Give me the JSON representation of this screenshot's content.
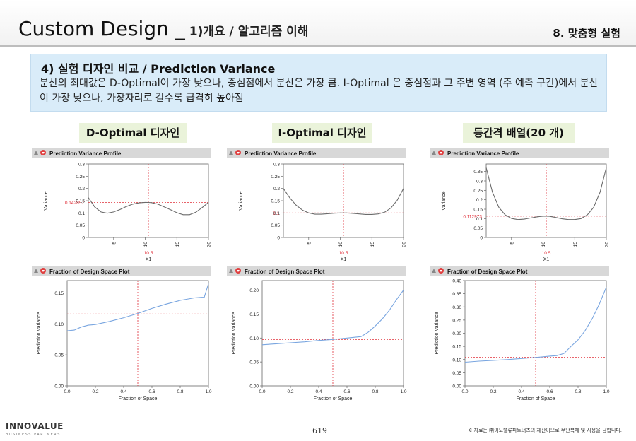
{
  "header": {
    "title": "Custom Design _",
    "subtitle": "1)개요 / 알고리즘 이해",
    "section": "8. 맞춤형 실험"
  },
  "box": {
    "title": "4) 실험 디자인 비교 / Prediction Variance",
    "body": "분산의 최대값은 D-Optimal이 가장 낮으나, 중심점에서 분산은 가장 큼. I-Optimal 은 중심점과 그 주변 영역 (주 예측 구간)에서 분산이 가장 낮으나, 가장자리로 갈수록 급격히 높아짐"
  },
  "profile_common": {
    "title": "Prediction Variance Profile",
    "ylabel": "Variance",
    "xlabel": "X1",
    "x_ticks": [
      "5",
      "10",
      "15",
      "20"
    ],
    "cursor_x": "10.5"
  },
  "fds_common": {
    "title": "Fraction of Design Space Plot",
    "ylabel": "Prediction Variance",
    "xlabel": "Fraction of Space",
    "x_ticks": [
      "0.0",
      "0.2",
      "0.4",
      "0.6",
      "0.8",
      "1.0"
    ]
  },
  "colors": {
    "profile_curve": "#6b6b6b",
    "fds_curve": "#7aa6e0",
    "crosshair": "#e0303a",
    "panel_header": "#d8d8d8",
    "label_bg": "#eaf3da"
  },
  "footer": {
    "logo": "INNOVALUE",
    "logo_sub": "BUSINESS PARTNERS",
    "page": "619",
    "note": "※ 자료는 ㈜이노밸류파트너즈의 재산이므로 무단복제 및 사용을 금합니다."
  },
  "chart_data": [
    {
      "type": "line",
      "panel_label": "D-Optimal 디자인",
      "profile": {
        "y_ticks": [
          "0",
          "0.05",
          "0.1",
          "0.15",
          "0.2",
          "0.25",
          "0.3"
        ],
        "ylim": [
          0,
          0.3
        ],
        "xlim": [
          1,
          20
        ],
        "cursor_y_label": "0.142857",
        "cursor_y": 0.142857,
        "x": [
          1,
          2,
          3,
          4,
          5,
          6,
          7,
          8,
          9,
          10,
          10.5,
          11,
          12,
          13,
          14,
          15,
          16,
          17,
          18,
          19,
          20
        ],
        "y": [
          0.163,
          0.125,
          0.104,
          0.099,
          0.104,
          0.114,
          0.126,
          0.136,
          0.141,
          0.143,
          0.1429,
          0.142,
          0.136,
          0.125,
          0.113,
          0.101,
          0.093,
          0.093,
          0.103,
          0.122,
          0.143
        ]
      },
      "fds": {
        "y_ticks": [
          "0.00",
          "0.05",
          "0.10",
          "0.15"
        ],
        "ylim": [
          0,
          0.17
        ],
        "xlim": [
          0,
          1
        ],
        "cursor_x": 0.5,
        "cursor_y": 0.116,
        "x": [
          0,
          0.05,
          0.1,
          0.15,
          0.2,
          0.3,
          0.4,
          0.5,
          0.6,
          0.7,
          0.8,
          0.9,
          0.95,
          0.97,
          1.0
        ],
        "y": [
          0.089,
          0.09,
          0.095,
          0.098,
          0.099,
          0.104,
          0.11,
          0.117,
          0.125,
          0.132,
          0.138,
          0.142,
          0.143,
          0.143,
          0.165
        ]
      }
    },
    {
      "type": "line",
      "panel_label": "I-Optimal 디자인",
      "profile": {
        "y_ticks": [
          "0",
          "0.05",
          "0.1",
          "0.15",
          "0.2",
          "0.25",
          "0.3"
        ],
        "ylim": [
          0,
          0.3
        ],
        "xlim": [
          1,
          20
        ],
        "cursor_y_label": "0.1",
        "cursor_y": 0.1,
        "x": [
          1,
          2,
          3,
          4,
          5,
          6,
          7,
          8,
          9,
          10,
          10.5,
          11,
          12,
          13,
          14,
          15,
          16,
          17,
          18,
          19,
          20
        ],
        "y": [
          0.2,
          0.162,
          0.132,
          0.112,
          0.1,
          0.095,
          0.095,
          0.097,
          0.099,
          0.1,
          0.1,
          0.1,
          0.098,
          0.096,
          0.094,
          0.094,
          0.096,
          0.103,
          0.12,
          0.152,
          0.2
        ]
      },
      "fds": {
        "y_ticks": [
          "0.00",
          "0.05",
          "0.10",
          "0.15",
          "0.20"
        ],
        "ylim": [
          0,
          0.22
        ],
        "xlim": [
          0,
          1
        ],
        "cursor_x": 0.5,
        "cursor_y": 0.097,
        "x": [
          0,
          0.1,
          0.2,
          0.3,
          0.4,
          0.5,
          0.6,
          0.7,
          0.75,
          0.8,
          0.85,
          0.9,
          0.95,
          1.0
        ],
        "y": [
          0.086,
          0.088,
          0.09,
          0.092,
          0.095,
          0.097,
          0.1,
          0.103,
          0.112,
          0.125,
          0.14,
          0.158,
          0.18,
          0.2
        ]
      }
    },
    {
      "type": "line",
      "panel_label": "등간격 배열(20 개)",
      "profile": {
        "y_ticks": [
          "0",
          "0.05",
          "0.1",
          "0.15",
          "0.2",
          "0.25",
          "0.3",
          "0.35"
        ],
        "ylim": [
          0,
          0.39
        ],
        "xlim": [
          1,
          20
        ],
        "cursor_y_label": "0.112973",
        "cursor_y": 0.112973,
        "x": [
          1,
          2,
          3,
          4,
          5,
          6,
          7,
          8,
          9,
          10,
          10.5,
          11,
          12,
          13,
          14,
          15,
          16,
          17,
          18,
          19,
          20
        ],
        "y": [
          0.37,
          0.24,
          0.16,
          0.12,
          0.101,
          0.095,
          0.097,
          0.103,
          0.109,
          0.113,
          0.113,
          0.112,
          0.106,
          0.099,
          0.095,
          0.095,
          0.1,
          0.12,
          0.16,
          0.24,
          0.37
        ]
      },
      "fds": {
        "y_ticks": [
          "0.00",
          "0.05",
          "0.10",
          "0.15",
          "0.20",
          "0.25",
          "0.30",
          "0.35",
          "0.40"
        ],
        "ylim": [
          0,
          0.4
        ],
        "xlim": [
          0,
          1
        ],
        "cursor_x": 0.5,
        "cursor_y": 0.109,
        "x": [
          0,
          0.1,
          0.2,
          0.3,
          0.4,
          0.5,
          0.6,
          0.65,
          0.7,
          0.75,
          0.8,
          0.85,
          0.9,
          0.95,
          1.0
        ],
        "y": [
          0.09,
          0.094,
          0.097,
          0.1,
          0.104,
          0.108,
          0.113,
          0.115,
          0.123,
          0.15,
          0.175,
          0.21,
          0.255,
          0.31,
          0.375
        ]
      }
    }
  ]
}
